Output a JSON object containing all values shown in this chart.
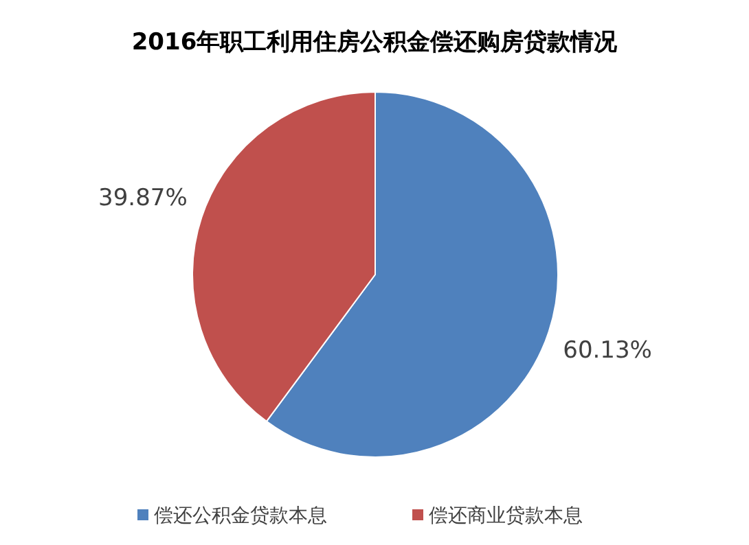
{
  "chart_data": {
    "type": "pie",
    "title": "2016年职工利用住房公积金偿还购房贷款情况",
    "categories": [
      "偿还公积金贷款本息",
      "偿还商业贷款本息"
    ],
    "values": [
      60.13,
      39.87
    ],
    "value_labels": [
      "60.13%",
      "39.87%"
    ],
    "colors": [
      "#4f81bd",
      "#c0504d"
    ],
    "legend": "bottom"
  }
}
